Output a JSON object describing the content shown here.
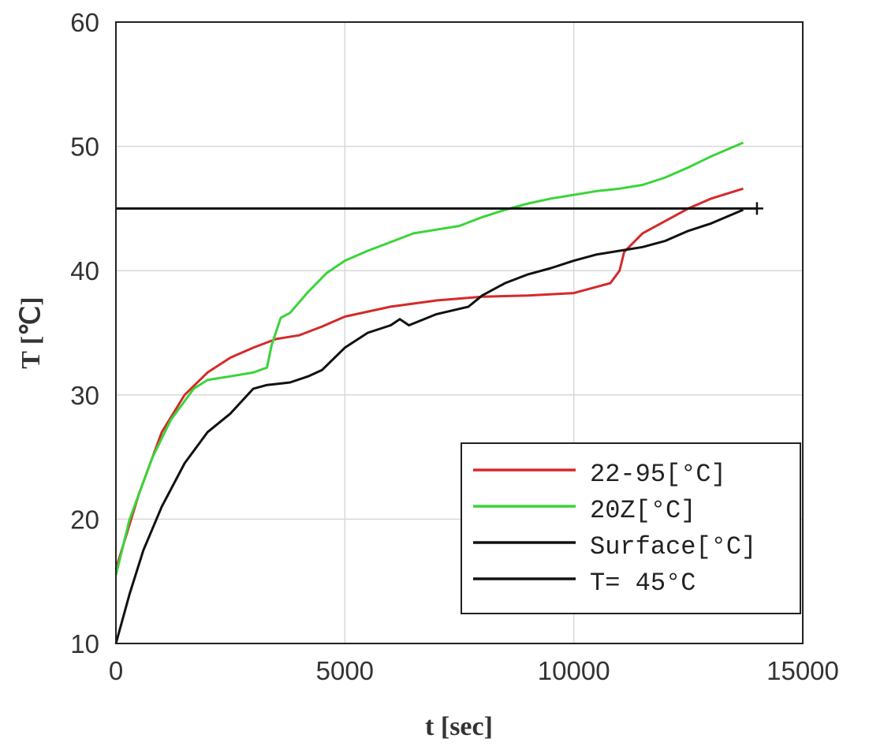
{
  "chart_data": {
    "type": "line",
    "title": "",
    "xlabel": "t [sec]",
    "ylabel": "T [℃]",
    "xlim": [
      0,
      15000
    ],
    "ylim": [
      10,
      60
    ],
    "xticks": [
      "0",
      "5000",
      "10000",
      "15000"
    ],
    "yticks": [
      "10",
      "20",
      "30",
      "40",
      "50",
      "60"
    ],
    "grid": true,
    "legend_position": "bottom-right",
    "series": [
      {
        "name": "22-95[°C]",
        "color": "#d42a2a",
        "x": [
          0,
          500,
          1000,
          1500,
          2000,
          2500,
          3000,
          3500,
          4000,
          4500,
          5000,
          6000,
          7000,
          8000,
          9000,
          10000,
          10800,
          11000,
          11100,
          11500,
          12000,
          12500,
          13000,
          13700
        ],
        "y": [
          16,
          22,
          27,
          30,
          31.8,
          33,
          33.8,
          34.5,
          34.8,
          35.5,
          36.3,
          37.1,
          37.6,
          37.9,
          38,
          38.2,
          39,
          40,
          41.5,
          43,
          44,
          45,
          45.8,
          46.6
        ]
      },
      {
        "name": "20Z[°C]",
        "color": "#3ad43a",
        "x": [
          0,
          300,
          800,
          1200,
          1700,
          2000,
          2500,
          3000,
          3300,
          3400,
          3600,
          3800,
          4200,
          4600,
          5000,
          5500,
          6000,
          6500,
          7000,
          7500,
          8000,
          8500,
          9000,
          9500,
          10000,
          10500,
          11000,
          11500,
          12000,
          12500,
          13000,
          13700
        ],
        "y": [
          15.5,
          20,
          25,
          28,
          30.5,
          31.2,
          31.5,
          31.8,
          32.2,
          34,
          36.2,
          36.6,
          38.3,
          39.8,
          40.8,
          41.6,
          42.3,
          43,
          43.3,
          43.6,
          44.3,
          44.9,
          45.4,
          45.8,
          46.1,
          46.4,
          46.6,
          46.9,
          47.5,
          48.3,
          49.2,
          50.3
        ]
      },
      {
        "name": "Surface[°C]",
        "color": "#111111",
        "x": [
          0,
          300,
          600,
          1000,
          1500,
          2000,
          2500,
          3000,
          3300,
          3800,
          4200,
          4500,
          5000,
          5500,
          6000,
          6200,
          6400,
          7000,
          7700,
          8000,
          8500,
          9000,
          9500,
          10000,
          10500,
          11000,
          11500,
          12000,
          12500,
          13000,
          13700
        ],
        "y": [
          10,
          14,
          17.5,
          21,
          24.5,
          27,
          28.5,
          30.5,
          30.8,
          31,
          31.5,
          32,
          33.8,
          35,
          35.6,
          36.1,
          35.6,
          36.5,
          37.1,
          38,
          39,
          39.7,
          40.2,
          40.8,
          41.3,
          41.6,
          41.9,
          42.4,
          43.2,
          43.8,
          44.9
        ]
      },
      {
        "name": "T= 45°C",
        "color": "#111111",
        "x": [
          0,
          14000
        ],
        "y": [
          45,
          45
        ]
      }
    ]
  }
}
